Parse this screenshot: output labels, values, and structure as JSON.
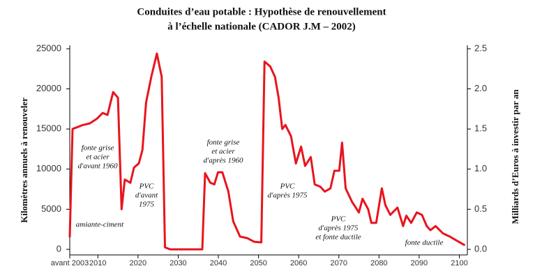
{
  "chart_data": {
    "type": "line",
    "title": [
      "Conduites d’eau potable : Hypothèse de renouvellement",
      "à l’échelle nationale (CADOR J.M – 2002)"
    ],
    "ylabel": "Kilomètres annuels à renouveler",
    "y2label": "Milliards d’Euros à investir par an",
    "xlim": [
      2003,
      2102
    ],
    "xticks": [
      {
        "value": 2003,
        "label": "avant 2003"
      },
      2010,
      2020,
      2030,
      2040,
      2050,
      2060,
      2070,
      2080,
      2090,
      2100
    ],
    "ylim": [
      0,
      25000
    ],
    "yticks": [
      0,
      5000,
      10000,
      15000,
      20000,
      25000
    ],
    "y2lim": [
      0,
      2.5
    ],
    "y2ticks": [
      {
        "value": 0,
        "label": "0.0"
      },
      0.5,
      {
        "value": 1,
        "label": "1.0"
      },
      1.5,
      {
        "value": 2,
        "label": "2.0"
      },
      2.5
    ],
    "series": [
      {
        "color": "#e8141c",
        "x": [
          2003,
          2003.7,
          2006.3,
          2008,
          2009.8,
          2011.2,
          2012.4,
          2013.8,
          2015,
          2015.9,
          2016.7,
          2018.1,
          2019,
          2020.2,
          2021.1,
          2022,
          2023.3,
          2024.7,
          2025.9,
          2026.7,
          2028,
          2036,
          2036.7,
          2038,
          2039,
          2039.9,
          2041,
          2042.5,
          2043.7,
          2045.4,
          2047.2,
          2048.9,
          2050.7,
          2051.5,
          2052.9,
          2054.1,
          2055,
          2055.9,
          2056.7,
          2058.1,
          2059.3,
          2060.6,
          2061.6,
          2063,
          2064,
          2065.4,
          2066.5,
          2067.9,
          2068.9,
          2070.1,
          2070.8,
          2071.7,
          2073.3,
          2075,
          2075.9,
          2077.3,
          2078.1,
          2079.3,
          2080.7,
          2081.6,
          2082.8,
          2084.6,
          2086,
          2086.8,
          2088,
          2089.4,
          2090.7,
          2091.9,
          2092.8,
          2094.1,
          2095.9,
          2097.6,
          2099.3,
          2101.4
        ],
        "values": [
          1500,
          15000,
          15500,
          15700,
          16300,
          17000,
          16750,
          19600,
          18900,
          5000,
          8700,
          8300,
          10200,
          10700,
          12400,
          18300,
          21500,
          24400,
          21500,
          250,
          0,
          0,
          9500,
          8300,
          8100,
          9600,
          9600,
          7200,
          3500,
          1600,
          1400,
          950,
          870,
          23400,
          22800,
          21500,
          18900,
          15000,
          15500,
          14100,
          10700,
          12800,
          10400,
          11500,
          8100,
          7800,
          7200,
          7600,
          9800,
          9800,
          13300,
          7600,
          5900,
          4600,
          6300,
          5000,
          3300,
          3300,
          7600,
          5500,
          4300,
          5200,
          2900,
          4200,
          3300,
          4600,
          4300,
          2900,
          2400,
          2900,
          2000,
          1600,
          1100,
          500
        ]
      }
    ],
    "annotations": [
      [
        "fonte grise",
        "et acier",
        "d'avant 1960"
      ],
      [
        "PVC",
        "d'avant",
        "1975"
      ],
      [
        "amiante-ciment"
      ],
      [
        "fonte grise",
        "et acier",
        "d'après 1960"
      ],
      [
        "PVC",
        "d'après 1975"
      ],
      [
        "PVC",
        "d'après 1975",
        "et fonte ductile"
      ],
      [
        "fonte ductile"
      ]
    ]
  }
}
